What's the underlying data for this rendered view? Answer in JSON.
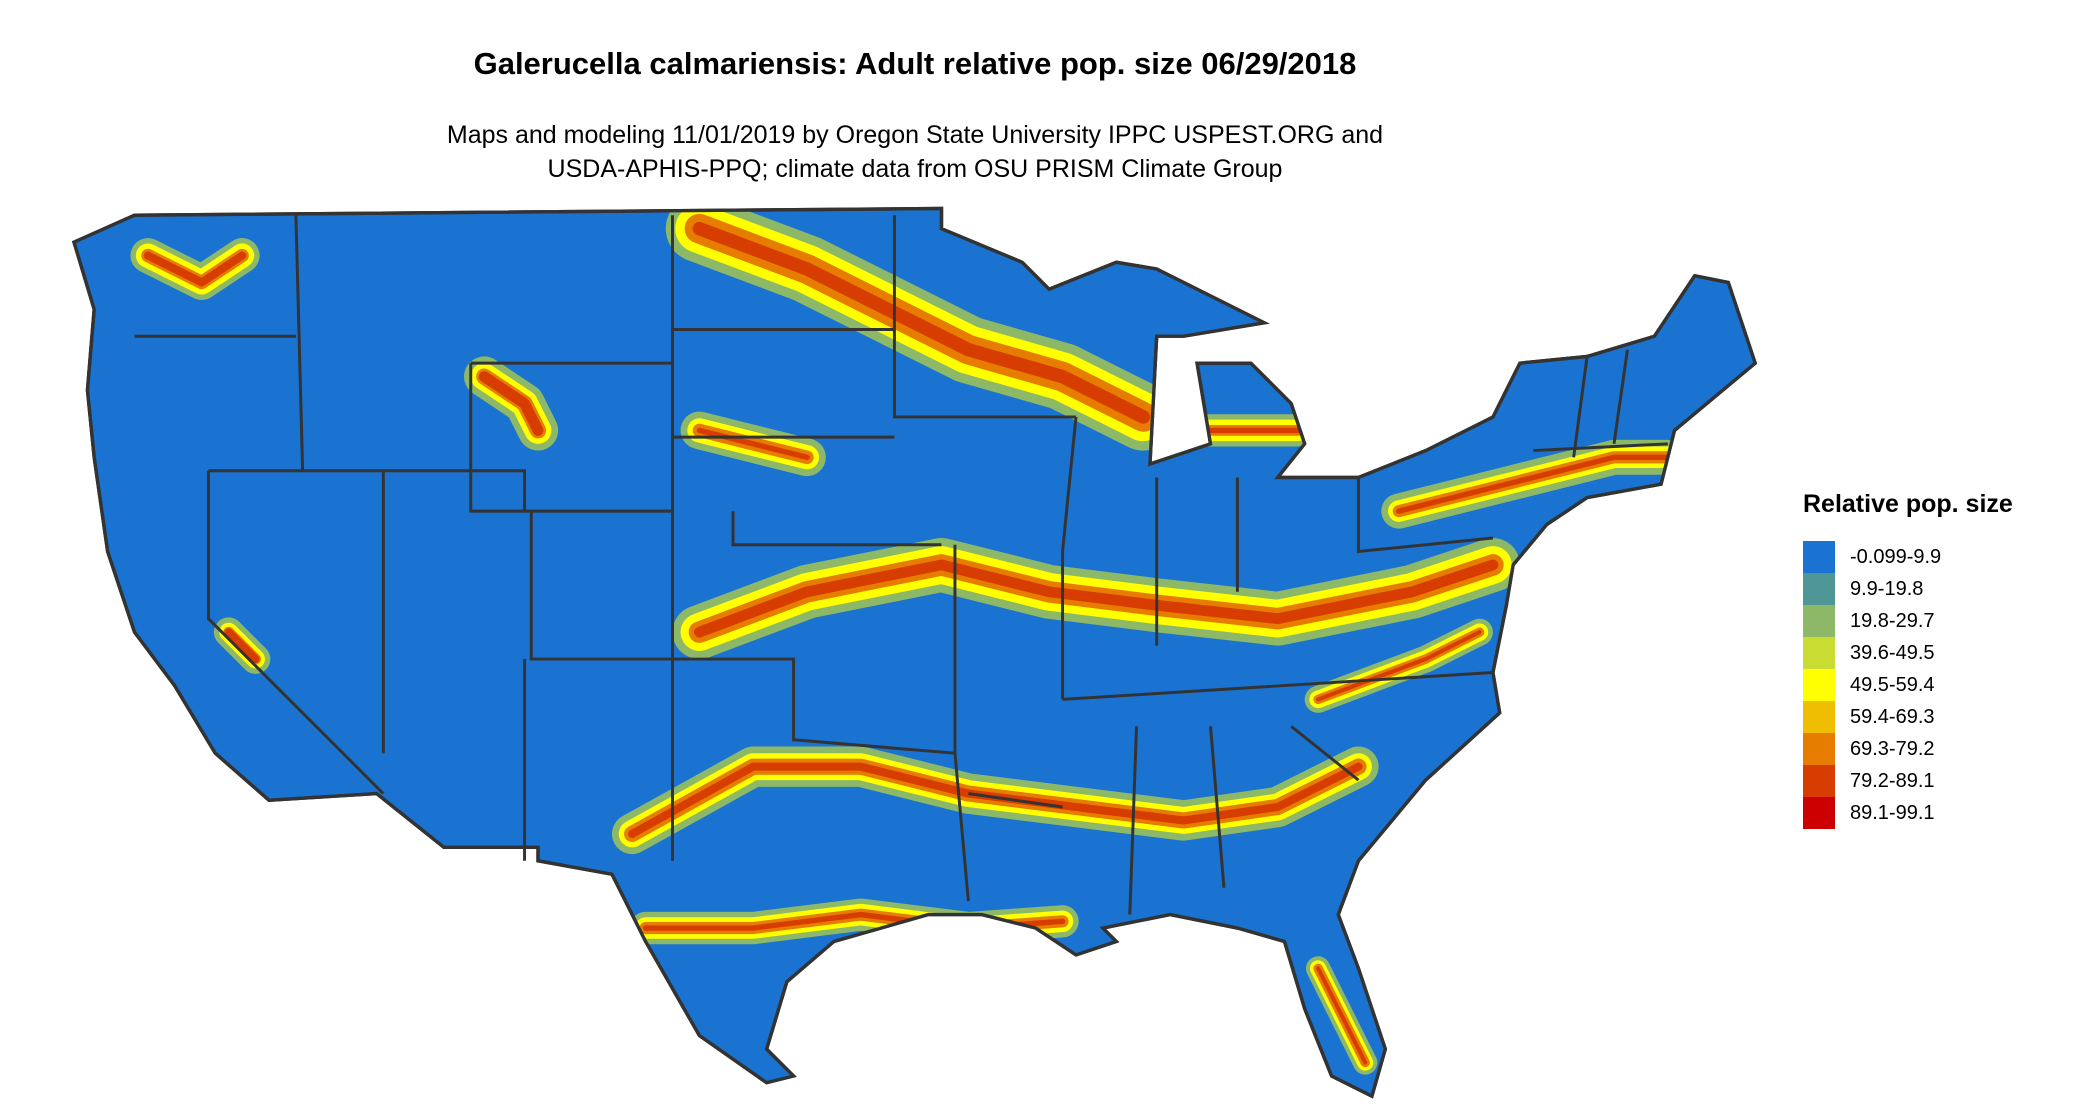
{
  "title": "Galerucella calmariensis: Adult relative pop. size 06/29/2018",
  "subtitle_line1": "Maps and modeling 11/01/2019 by Oregon State University IPPC USPEST.ORG and",
  "subtitle_line2": "USDA-APHIS-PPQ; climate data from OSU PRISM Climate Group",
  "legend": {
    "title": "Relative pop. size",
    "items": [
      {
        "label": "-0.099-9.9",
        "color": "#1a73d0"
      },
      {
        "label": "9.9-19.8",
        "color": "#4f9696"
      },
      {
        "label": "19.8-29.7",
        "color": "#8cb868"
      },
      {
        "label": "39.6-49.5",
        "color": "#c8dc32"
      },
      {
        "label": "49.5-59.4",
        "color": "#ffff00"
      },
      {
        "label": "59.4-69.3",
        "color": "#f0be00"
      },
      {
        "label": "69.3-79.2",
        "color": "#e67d00"
      },
      {
        "label": "79.2-89.1",
        "color": "#d73c00"
      },
      {
        "label": "89.1-99.1",
        "color": "#cc0000"
      }
    ]
  },
  "map": {
    "region": "Contiguous United States",
    "base_color": "#1a73d0",
    "border_color": "#333333"
  }
}
